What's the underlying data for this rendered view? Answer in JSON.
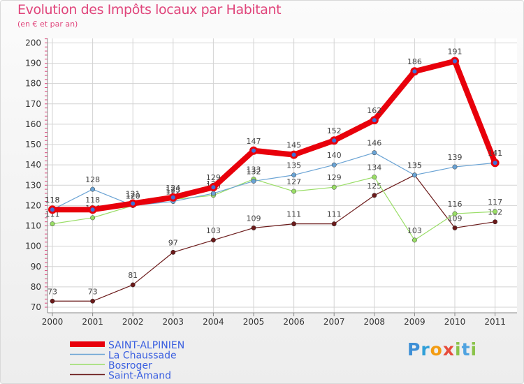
{
  "chart_data": {
    "type": "line",
    "title": "Evolution des Impôts locaux par Habitant",
    "subtitle": "(en € et par an)",
    "xlabel": "",
    "ylabel": "",
    "ylim": [
      70,
      200
    ],
    "yticks": [
      70,
      80,
      90,
      100,
      110,
      120,
      130,
      140,
      150,
      160,
      170,
      180,
      190,
      200
    ],
    "categories": [
      "2000",
      "2001",
      "2002",
      "2003",
      "2004",
      "2005",
      "2006",
      "2007",
      "2008",
      "2009",
      "2010",
      "2011"
    ],
    "series": [
      {
        "name": "SAINT-ALPINIEN",
        "color": "#e8000b",
        "values": [
          118,
          118,
          121,
          124,
          129,
          147,
          145,
          152,
          162,
          186,
          191,
          141
        ]
      },
      {
        "name": "La Chaussade",
        "color": "#6aa3d4",
        "values": [
          118,
          128,
          120,
          122,
          126,
          132,
          135,
          140,
          146,
          135,
          139,
          141
        ]
      },
      {
        "name": "Bosroger",
        "color": "#99dd66",
        "values": [
          111,
          114,
          120,
          123,
          125,
          133,
          127,
          129,
          134,
          103,
          116,
          117
        ]
      },
      {
        "name": "Saint-Amand",
        "color": "#6b1a1a",
        "values": [
          73,
          73,
          81,
          97,
          103,
          109,
          111,
          111,
          125,
          135,
          109,
          112
        ]
      }
    ]
  },
  "logo": {
    "letters": [
      "P",
      "r",
      "o",
      "x",
      "i",
      "t",
      "i"
    ],
    "colors": [
      "#3d8fd6",
      "#2f9fd8",
      "#f39c12",
      "#e74c3c",
      "#8bc34a",
      "#4fa3e0",
      "#8bc34a"
    ]
  }
}
